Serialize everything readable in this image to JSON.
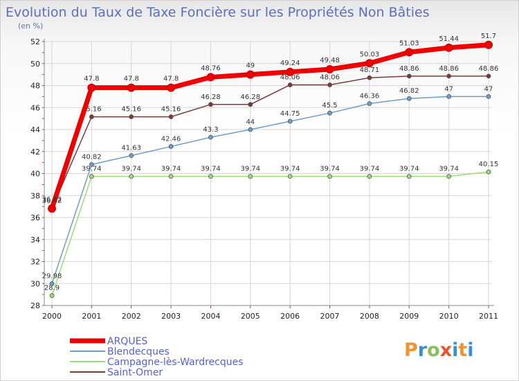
{
  "header": {
    "title": "Evolution du Taux de Taxe Foncière sur les Propriétés Non Bâties",
    "unit": "(en %)"
  },
  "brand": {
    "name": "Proxiti"
  },
  "chart_data": {
    "type": "line",
    "title": "Evolution du Taux de Taxe Foncière sur les Propriétés Non Bâties",
    "ylabel": "(en %)",
    "xlabel": "",
    "ylim": [
      28,
      52
    ],
    "yticks": [
      "28",
      "30",
      "32",
      "34",
      "36",
      "38",
      "40",
      "42",
      "44",
      "46",
      "48",
      "50",
      "52"
    ],
    "categories": [
      "2000",
      "2001",
      "2002",
      "2003",
      "2004",
      "2005",
      "2006",
      "2007",
      "2008",
      "2009",
      "2010",
      "2011"
    ],
    "grid": true,
    "legend": "bottom-left",
    "series": [
      {
        "name": "ARQUES",
        "color": "#ee0000",
        "values": [
          36.82,
          47.8,
          47.8,
          47.8,
          48.76,
          49,
          49.24,
          49.48,
          50.03,
          51.03,
          51.44,
          51.7
        ],
        "labels": [
          "36.82",
          "47.8",
          "47.8",
          "47.8",
          "48.76",
          "49",
          "49.24",
          "49.48",
          "50.03",
          "51.03",
          "51.44",
          "51.7"
        ]
      },
      {
        "name": "Blendecques",
        "color": "#6e9ec8",
        "values": [
          29.98,
          40.82,
          41.63,
          42.46,
          43.3,
          44,
          44.75,
          45.5,
          46.36,
          46.82,
          47,
          47
        ],
        "labels": [
          "29.98",
          "40.82",
          "41.63",
          "42.46",
          "43.3",
          "44",
          "44.75",
          "45.5",
          "46.36",
          "46.82",
          "47",
          "47"
        ]
      },
      {
        "name": "Campagne-lès-Wardrecques",
        "color": "#99dd77",
        "values": [
          28.9,
          39.74,
          39.74,
          39.74,
          39.74,
          39.74,
          39.74,
          39.74,
          39.74,
          39.74,
          39.74,
          40.15
        ],
        "labels": [
          "28.9",
          "39.74",
          "39.74",
          "39.74",
          "39.74",
          "39.74",
          "39.74",
          "39.74",
          "39.74",
          "39.74",
          "39.74",
          "40.15"
        ]
      },
      {
        "name": "Saint-Omer",
        "color": "#7a3a3a",
        "values": [
          36.82,
          45.16,
          45.16,
          45.16,
          46.28,
          46.28,
          48.06,
          48.06,
          48.71,
          48.86,
          48.86,
          48.86
        ],
        "labels": [
          "36.82",
          "45.16",
          "45.16",
          "45.16",
          "46.28",
          "46.28",
          "48.06",
          "48.06",
          "48.71",
          "48.86",
          "48.86",
          "48.86"
        ]
      }
    ]
  }
}
